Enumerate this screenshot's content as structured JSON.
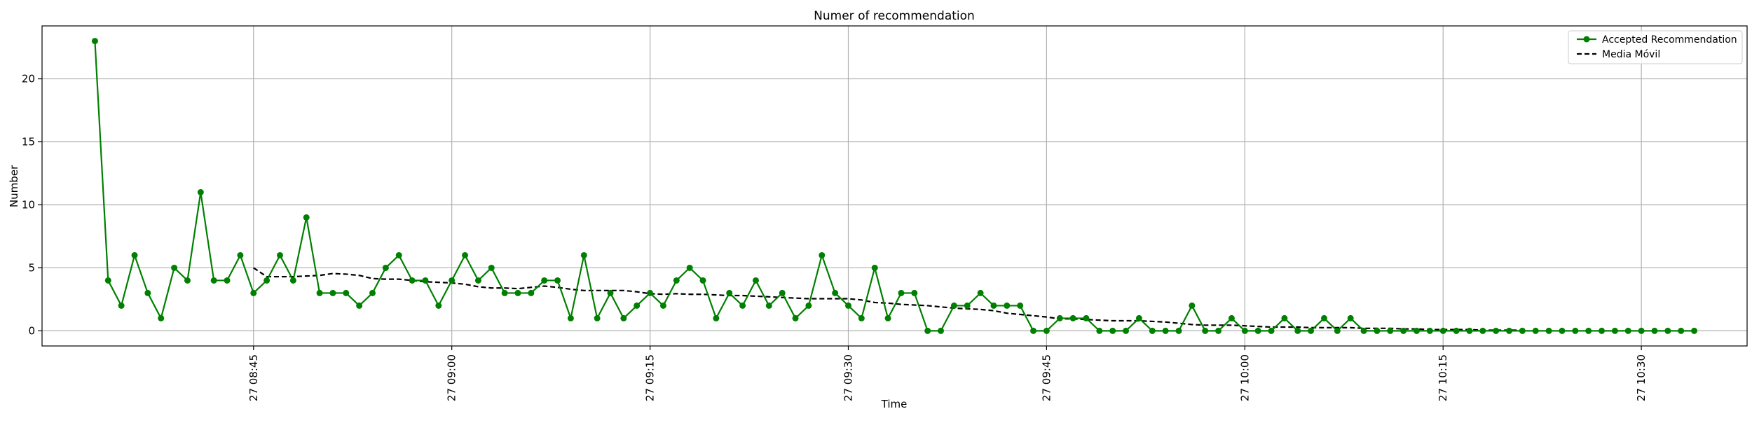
{
  "chart_data": {
    "type": "line",
    "title": "Numer of recommendation",
    "xlabel": "Time",
    "ylabel": "Number",
    "x_start": "27 08:37",
    "x_step_minutes": 1,
    "xlim": [
      "27 08:33",
      "27 10:42"
    ],
    "ylim": [
      -1.2,
      24.2
    ],
    "y_ticks": [
      0,
      5,
      10,
      15,
      20
    ],
    "x_ticks": [
      {
        "minute": 12,
        "label": "27 08:45"
      },
      {
        "minute": 27,
        "label": "27 09:00"
      },
      {
        "minute": 42,
        "label": "27 09:15"
      },
      {
        "minute": 57,
        "label": "27 09:30"
      },
      {
        "minute": 72,
        "label": "27 09:45"
      },
      {
        "minute": 87,
        "label": "27 10:00"
      },
      {
        "minute": 102,
        "label": "27 10:15"
      },
      {
        "minute": 117,
        "label": "27 10:30"
      }
    ],
    "grid": true,
    "legend_position": "top-right",
    "series": [
      {
        "name": "Accepted Recommendation",
        "color": "#008000",
        "style": "solid-with-circle-markers",
        "values": [
          23,
          4,
          2,
          6,
          3,
          1,
          5,
          4,
          11,
          4,
          4,
          6,
          3,
          4,
          6,
          4,
          9,
          3,
          3,
          3,
          2,
          3,
          5,
          6,
          4,
          4,
          2,
          4,
          6,
          4,
          5,
          3,
          3,
          3,
          4,
          4,
          1,
          6,
          1,
          3,
          1,
          2,
          3,
          2,
          4,
          5,
          4,
          1,
          3,
          2,
          4,
          2,
          3,
          1,
          2,
          6,
          3,
          2,
          1,
          5,
          1,
          3,
          3,
          0,
          0,
          2,
          2,
          3,
          2,
          2,
          2,
          0,
          0,
          1,
          1,
          1,
          0,
          0,
          0,
          1,
          0,
          0,
          0,
          2,
          0,
          0,
          1,
          0,
          0,
          0,
          1,
          0,
          0,
          1,
          0,
          1,
          0,
          0,
          0,
          0,
          0,
          0,
          0,
          0,
          0,
          0,
          0,
          0,
          0,
          0,
          0,
          0,
          0,
          0,
          0,
          0,
          0,
          0,
          0,
          0,
          0,
          0
        ]
      },
      {
        "name": "Media Móvil",
        "color": "#000000",
        "style": "dashed",
        "values": [
          null,
          null,
          null,
          null,
          null,
          null,
          null,
          null,
          null,
          null,
          null,
          null,
          5.0,
          4.3,
          4.3,
          4.3,
          4.35,
          4.4,
          4.55,
          4.5,
          4.4,
          4.15,
          4.1,
          4.1,
          4.0,
          3.9,
          3.85,
          3.8,
          3.7,
          3.5,
          3.4,
          3.4,
          3.35,
          3.45,
          3.55,
          3.45,
          3.3,
          3.2,
          3.2,
          3.2,
          3.2,
          3.1,
          2.95,
          2.9,
          2.95,
          2.9,
          2.9,
          2.85,
          2.8,
          2.8,
          2.75,
          2.7,
          2.65,
          2.6,
          2.55,
          2.55,
          2.55,
          2.55,
          2.45,
          2.25,
          2.2,
          2.1,
          2.05,
          2.0,
          1.9,
          1.8,
          1.75,
          1.7,
          1.6,
          1.4,
          1.3,
          1.2,
          1.1,
          0.95,
          0.95,
          0.9,
          0.85,
          0.8,
          0.8,
          0.8,
          0.75,
          0.7,
          0.6,
          0.5,
          0.45,
          0.45,
          0.45,
          0.4,
          0.35,
          0.3,
          0.3,
          0.3,
          0.25,
          0.25,
          0.25,
          0.25,
          0.2,
          0.2,
          0.2,
          0.15,
          0.15,
          0.1,
          0.1,
          0.1,
          0.1,
          0.05,
          0.05,
          0.05,
          0.05
        ]
      }
    ]
  }
}
